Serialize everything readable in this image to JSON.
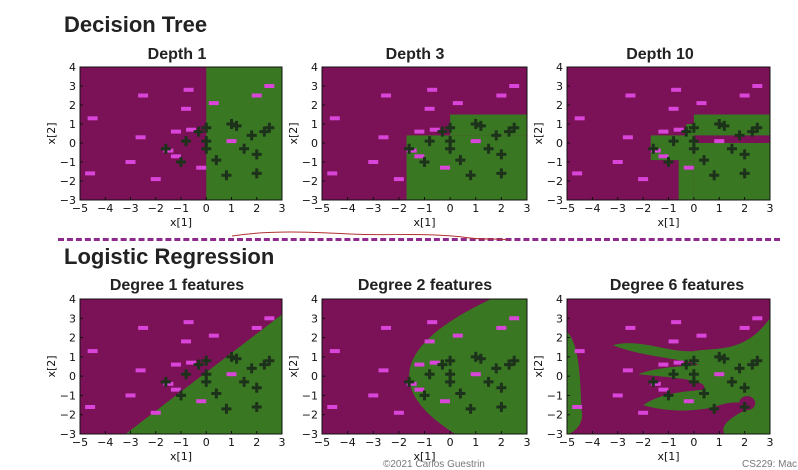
{
  "section_titles": {
    "decision_tree": "Decision Tree",
    "logistic_regression": "Logistic Regression"
  },
  "footer": {
    "copyright": "©2021 Carlos Guestrin",
    "course": "CS229: Mac"
  },
  "colors": {
    "negative_region": "#7b1156",
    "positive_region": "#3a7722",
    "negative_marker": "#d845d8",
    "positive_marker": "#1c321a",
    "divider": "#8e2a8e"
  },
  "chart_data": [
    {
      "type": "scatter",
      "title": "Depth 1",
      "xlabel": "x[1]",
      "ylabel": "x[2]",
      "xlim": [
        -5,
        3
      ],
      "ylim": [
        -3,
        4
      ],
      "x_ticks": [
        "−5",
        "−4",
        "−3",
        "−2",
        "−1",
        "0",
        "1",
        "2",
        "3"
      ],
      "y_ticks": [
        "−3",
        "−2",
        "−1",
        "0",
        "1",
        "2",
        "3",
        "4"
      ],
      "model": "Decision Tree",
      "region": {
        "kind": "tree",
        "rects": [
          [
            0,
            3,
            -3,
            4
          ]
        ]
      }
    },
    {
      "type": "scatter",
      "title": "Depth 3",
      "xlabel": "x[1]",
      "ylabel": "x[2]",
      "xlim": [
        -5,
        3
      ],
      "ylim": [
        -3,
        4
      ],
      "x_ticks": [
        "−5",
        "−4",
        "−3",
        "−2",
        "−1",
        "0",
        "1",
        "2",
        "3"
      ],
      "y_ticks": [
        "−3",
        "−2",
        "−1",
        "0",
        "1",
        "2",
        "3",
        "4"
      ],
      "model": "Decision Tree",
      "region": {
        "kind": "tree",
        "rects": [
          [
            -1.7,
            3,
            -3,
            0.4
          ],
          [
            0,
            3,
            0.4,
            1.5
          ]
        ]
      }
    },
    {
      "type": "scatter",
      "title": "Depth 10",
      "xlabel": "x[1]",
      "ylabel": "x[2]",
      "xlim": [
        -5,
        3
      ],
      "ylim": [
        -3,
        4
      ],
      "x_ticks": [
        "−5",
        "−4",
        "−3",
        "−2",
        "−1",
        "0",
        "1",
        "2",
        "3"
      ],
      "y_ticks": [
        "−3",
        "−2",
        "−1",
        "0",
        "1",
        "2",
        "3",
        "4"
      ],
      "model": "Decision Tree",
      "region": {
        "kind": "tree",
        "rects": [
          [
            0,
            3,
            -3,
            0
          ],
          [
            -0.6,
            0,
            -3,
            -0.9
          ],
          [
            -1.7,
            0,
            -0.9,
            0.4
          ],
          [
            0,
            3,
            0.4,
            1.5
          ],
          [
            -0.3,
            0,
            0.4,
            1.0
          ]
        ]
      }
    },
    {
      "type": "scatter",
      "title": "Degree 1 features",
      "xlabel": "x[1]",
      "ylabel": "x[2]",
      "xlim": [
        -5,
        3
      ],
      "ylim": [
        -3,
        4
      ],
      "x_ticks": [
        "−5",
        "−4",
        "−3",
        "−2",
        "−1",
        "0",
        "1",
        "2",
        "3"
      ],
      "y_ticks": [
        "−3",
        "−2",
        "−1",
        "0",
        "1",
        "2",
        "3",
        "4"
      ],
      "model": "Logistic Regression",
      "region": {
        "kind": "linear",
        "a": 1.0,
        "b": -1.0,
        "c": 0.2
      }
    },
    {
      "type": "scatter",
      "title": "Degree 2 features",
      "xlabel": "x[1]",
      "ylabel": "x[2]",
      "xlim": [
        -5,
        3
      ],
      "ylim": [
        -3,
        4
      ],
      "x_ticks": [
        "−5",
        "−4",
        "−3",
        "−2",
        "−1",
        "0",
        "1",
        "2",
        "3"
      ],
      "y_ticks": [
        "−3",
        "−2",
        "−1",
        "0",
        "1",
        "2",
        "3",
        "4"
      ],
      "model": "Logistic Regression",
      "region": {
        "kind": "parabola",
        "vertex": [
          -1.6,
          0.0
        ],
        "k": 0.2
      }
    },
    {
      "type": "scatter",
      "title": "Degree 6 features",
      "xlabel": "x[1]",
      "ylabel": "x[2]",
      "xlim": [
        -5,
        3
      ],
      "ylim": [
        -3,
        4
      ],
      "x_ticks": [
        "−5",
        "−4",
        "−3",
        "−2",
        "−1",
        "0",
        "1",
        "2",
        "3"
      ],
      "y_ticks": [
        "−3",
        "−2",
        "−1",
        "0",
        "1",
        "2",
        "3",
        "4"
      ],
      "model": "Logistic Regression",
      "region": {
        "kind": "blobs"
      }
    }
  ],
  "points": {
    "negative": [
      [
        -4.5,
        1.3
      ],
      [
        -4.6,
        -1.6
      ],
      [
        -3.0,
        -1.0
      ],
      [
        -2.6,
        0.3
      ],
      [
        -2.5,
        2.5
      ],
      [
        -2.0,
        -1.9
      ],
      [
        -1.5,
        -0.4
      ],
      [
        -1.2,
        -0.7
      ],
      [
        -1.2,
        0.6
      ],
      [
        -0.8,
        1.8
      ],
      [
        -0.7,
        2.8
      ],
      [
        -0.6,
        0.7
      ],
      [
        -0.2,
        -1.3
      ],
      [
        0.3,
        2.1
      ],
      [
        1.0,
        0.1
      ],
      [
        2.0,
        2.5
      ],
      [
        2.5,
        3.0
      ]
    ],
    "positive": [
      [
        -1.6,
        -0.3
      ],
      [
        -1.0,
        -1.0
      ],
      [
        -0.8,
        0.1
      ],
      [
        -0.3,
        0.6
      ],
      [
        0.0,
        0.8
      ],
      [
        0.0,
        0.1
      ],
      [
        0.0,
        -0.3
      ],
      [
        0.4,
        -0.9
      ],
      [
        0.8,
        -1.7
      ],
      [
        1.0,
        1.0
      ],
      [
        1.2,
        0.9
      ],
      [
        1.5,
        -0.3
      ],
      [
        1.8,
        0.4
      ],
      [
        2.0,
        -0.6
      ],
      [
        2.0,
        -1.6
      ],
      [
        2.3,
        0.6
      ],
      [
        2.5,
        0.8
      ]
    ]
  }
}
